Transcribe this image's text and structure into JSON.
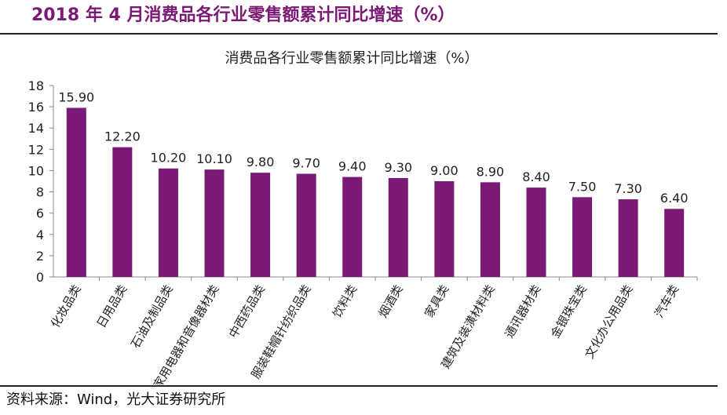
{
  "header": {
    "title": "2018 年 4 月消费品各行业零售额累计同比增速（%）"
  },
  "footer": {
    "source": "资料来源：Wind，光大证券研究所"
  },
  "colors": {
    "bar": "#7b1a74",
    "header_text": "#7b1a74",
    "axis": "#888888"
  },
  "chart_data": {
    "type": "bar",
    "title": "消费品各行业零售额累计同比增速（%）",
    "xlabel": "",
    "ylabel": "",
    "ylim": [
      0,
      18
    ],
    "yticks": [
      0,
      2,
      4,
      6,
      8,
      10,
      12,
      14,
      16,
      18
    ],
    "grid": false,
    "categories": [
      "化妆品类",
      "日用品类",
      "石油及制品类",
      "家用电器和音像器材类",
      "中西药品类",
      "服装鞋帽针纺织品类",
      "饮料类",
      "烟酒类",
      "家具类",
      "建筑及装潢材料类",
      "通讯器材类",
      "金银珠宝类",
      "文化办公用品类",
      "汽车类"
    ],
    "values": [
      15.9,
      12.2,
      10.2,
      10.1,
      9.8,
      9.7,
      9.4,
      9.3,
      9.0,
      8.9,
      8.4,
      7.5,
      7.3,
      6.4
    ],
    "data_labels": [
      "15.90",
      "12.20",
      "10.20",
      "10.10",
      "9.80",
      "9.70",
      "9.40",
      "9.30",
      "9.00",
      "8.90",
      "8.40",
      "7.50",
      "7.30",
      "6.40"
    ]
  }
}
